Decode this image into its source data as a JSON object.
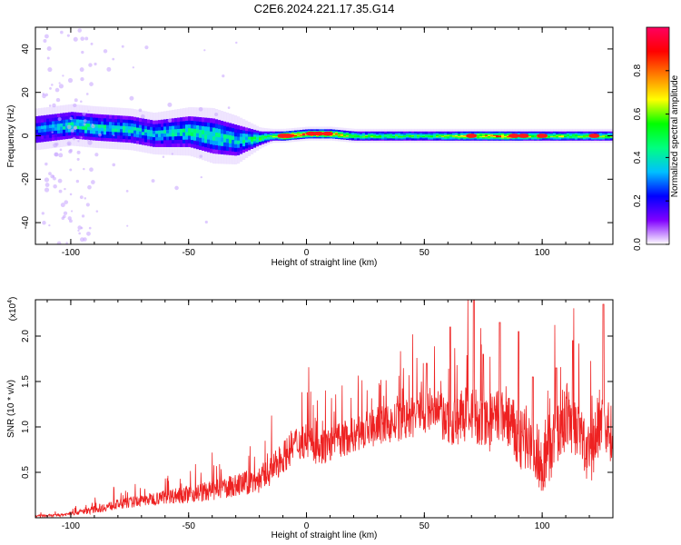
{
  "chart_data": [
    {
      "type": "heatmap",
      "title": "C2E6.2024.221.17.35.G14",
      "xlabel": "Height of straight line (km)",
      "ylabel": "Frequency (Hz)",
      "xlim": [
        -115,
        130
      ],
      "ylim": [
        -50,
        50
      ],
      "xticks": [
        -100,
        -50,
        0,
        50,
        100
      ],
      "yticks": [
        -40,
        -20,
        0,
        20,
        40
      ],
      "colorbar": {
        "label": "Normalized spectral amplitude",
        "range": [
          0,
          1
        ],
        "ticks": [
          "0.0",
          "0.2",
          "0.4",
          "0.6",
          "0.8"
        ],
        "colors": [
          "#ffffff",
          "#8000ff",
          "#0000ff",
          "#00c0ff",
          "#00ff80",
          "#00ff00",
          "#ffff00",
          "#ff8000",
          "#ff0000",
          "#ff0060"
        ]
      },
      "ridge_profile": {
        "x_km": [
          -115,
          -100,
          -90,
          -75,
          -65,
          -50,
          -40,
          -30,
          -20,
          -15,
          -10,
          0,
          10,
          20,
          50,
          80,
          100,
          130
        ],
        "center_freq_hz": [
          3,
          5,
          4,
          3,
          1,
          2,
          0,
          -2,
          -1,
          0,
          0,
          1,
          1,
          0,
          0,
          0,
          0,
          0
        ],
        "half_width_hz": [
          6,
          6,
          6,
          6,
          6,
          7,
          8,
          7,
          3,
          2,
          2,
          2,
          2,
          2,
          2,
          2,
          2,
          2
        ],
        "peak_amplitude": [
          0.3,
          0.45,
          0.45,
          0.4,
          0.38,
          0.45,
          0.5,
          0.4,
          0.55,
          0.6,
          0.95,
          0.9,
          0.95,
          0.6,
          0.55,
          0.85,
          0.65,
          0.6
        ]
      }
    },
    {
      "type": "line",
      "title": "",
      "xlabel": "Height of straight line (km)",
      "ylabel": "SNR (10 * v/v)",
      "y_multiplier": "(x10",
      "y_multiplier_exp": "4",
      "y_multiplier_close": ")",
      "xlim": [
        -115,
        130
      ],
      "ylim": [
        0,
        24000
      ],
      "xticks": [
        -100,
        -50,
        0,
        50,
        100
      ],
      "yticks": [
        5000,
        10000,
        15000,
        20000
      ],
      "ytick_labels": [
        "0.5",
        "1.0",
        "1.5",
        "2.0"
      ],
      "color": "#ee2222",
      "series": [
        {
          "name": "SNR",
          "x": [
            -115,
            -105,
            -100,
            -90,
            -80,
            -70,
            -60,
            -50,
            -40,
            -30,
            -20,
            -15,
            -10,
            -5,
            0,
            5,
            10,
            20,
            30,
            40,
            45,
            50,
            55,
            60,
            65,
            70,
            75,
            80,
            85,
            90,
            95,
            100,
            105,
            110,
            115,
            120,
            125,
            130
          ],
          "baseline": [
            200,
            300,
            500,
            1000,
            1600,
            2000,
            2500,
            2800,
            3200,
            3800,
            4500,
            5500,
            7000,
            8500,
            9000,
            8000,
            8500,
            9500,
            10500,
            11000,
            11500,
            12500,
            12000,
            11000,
            11500,
            12500,
            10500,
            11500,
            12000,
            9000,
            9500,
            6500,
            9000,
            12000,
            10500,
            7000,
            12000,
            9500
          ],
          "noise": [
            250,
            300,
            400,
            900,
            1100,
            1300,
            1600,
            2000,
            2200,
            2500,
            3000,
            3200,
            3500,
            4000,
            4000,
            3800,
            4000,
            4000,
            4200,
            4500,
            5000,
            5200,
            5500,
            5500,
            6000,
            6500,
            6500,
            6500,
            7000,
            7000,
            7000,
            6500,
            7000,
            7500,
            7000,
            7000,
            8000,
            6000
          ],
          "peaks": [
            [
              71,
              24000
            ],
            [
              126,
              23500
            ],
            [
              82,
              21500
            ],
            [
              61,
              21000
            ],
            [
              90,
              20500
            ],
            [
              113,
              19500
            ],
            [
              75,
              18000
            ],
            [
              51,
              17000
            ],
            [
              106,
              16500
            ],
            [
              96,
              15500
            ]
          ]
        }
      ]
    }
  ]
}
